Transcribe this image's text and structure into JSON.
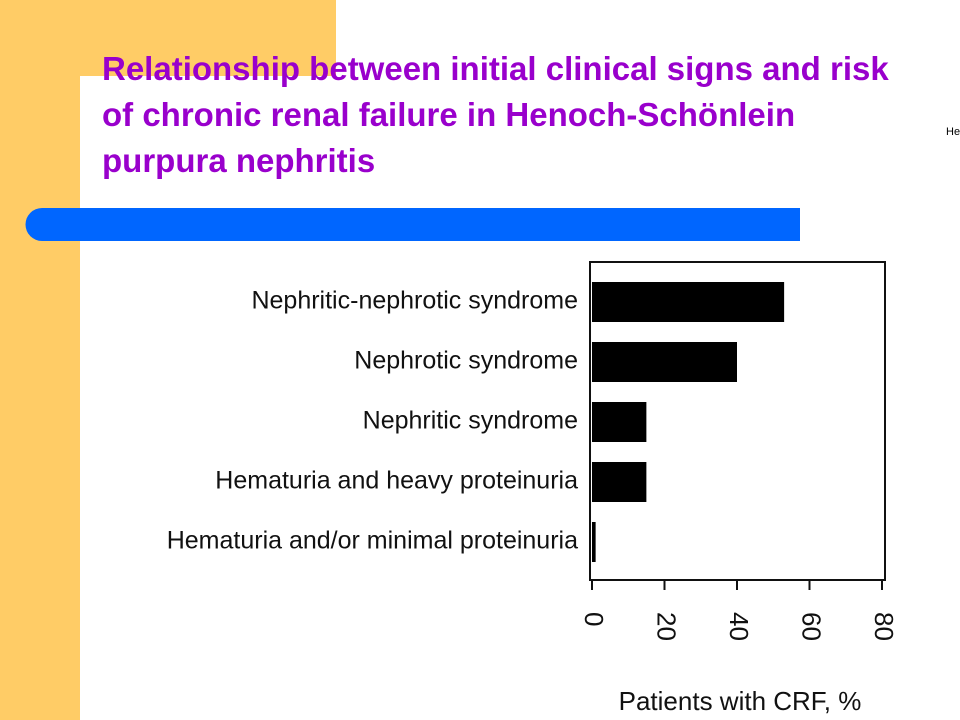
{
  "side_note": "He",
  "chart_data": {
    "type": "bar",
    "orientation": "horizontal",
    "title": "Relationship between initial clinical signs and risk of chronic renal failure in Henoch-Schönlein purpura nephritis",
    "categories": [
      "Nephritic-nephrotic syndrome",
      "Nephrotic syndrome",
      "Nephritic syndrome",
      "Hematuria and heavy proteinuria",
      "Hematuria and/or minimal proteinuria"
    ],
    "values": [
      53,
      40,
      15,
      15,
      1
    ],
    "color": "#000000",
    "xlabel": "Patients with CRF, %",
    "xlim": [
      0,
      80
    ],
    "xticks": [
      0,
      20,
      40,
      60,
      80
    ]
  }
}
